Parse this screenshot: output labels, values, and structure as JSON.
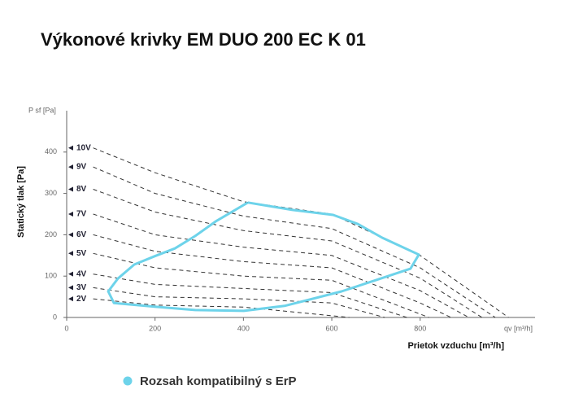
{
  "chart_data": {
    "type": "line",
    "title": "Výkonové krivky EM DUO 200 EC K 01",
    "y_axis_unit_label": "P sf [Pa]",
    "y_axis_label": "Statický tlak [Pa]",
    "x_axis_unit_label": "qv [m³/h]",
    "x_axis_label": "Prietok vzduchu [m³/h]",
    "xlim": [
      0,
      1060
    ],
    "ylim": [
      0,
      500
    ],
    "xticks": [
      0,
      200,
      400,
      600,
      800
    ],
    "yticks": [
      0,
      100,
      200,
      300,
      400
    ],
    "line_color": "#333333",
    "series": [
      {
        "name": "10V",
        "x": [
          60,
          200,
          400,
          600,
          800,
          1000
        ],
        "values": [
          410,
          350,
          280,
          250,
          150,
          0
        ]
      },
      {
        "name": "9V",
        "x": [
          60,
          200,
          400,
          600,
          800,
          970
        ],
        "values": [
          364,
          300,
          245,
          215,
          120,
          0
        ]
      },
      {
        "name": "8V",
        "x": [
          60,
          200,
          400,
          600,
          800,
          940
        ],
        "values": [
          310,
          255,
          210,
          185,
          95,
          0
        ]
      },
      {
        "name": "7V",
        "x": [
          60,
          200,
          400,
          600,
          800,
          910
        ],
        "values": [
          250,
          200,
          170,
          150,
          65,
          0
        ]
      },
      {
        "name": "6V",
        "x": [
          60,
          200,
          400,
          600,
          800,
          870
        ],
        "values": [
          200,
          160,
          135,
          120,
          35,
          0
        ]
      },
      {
        "name": "5V",
        "x": [
          60,
          200,
          400,
          600,
          820
        ],
        "values": [
          155,
          120,
          100,
          90,
          0
        ]
      },
      {
        "name": "4V",
        "x": [
          60,
          200,
          400,
          600,
          770
        ],
        "values": [
          105,
          80,
          70,
          60,
          0
        ]
      },
      {
        "name": "3V",
        "x": [
          60,
          200,
          400,
          600,
          720
        ],
        "values": [
          72,
          50,
          45,
          35,
          0
        ]
      },
      {
        "name": "2V",
        "x": [
          60,
          200,
          400,
          640
        ],
        "values": [
          45,
          30,
          25,
          0
        ]
      }
    ],
    "region": {
      "name": "Rozsah kompatibilný s ErP",
      "color": "#6dd3ea",
      "x": [
        410,
        511,
        603,
        659,
        714,
        797,
        778,
        696,
        622,
        493,
        401,
        291,
        199,
        107,
        94,
        116,
        153,
        199,
        245,
        291,
        337,
        410
      ],
      "values": [
        278,
        260,
        248,
        226,
        193,
        152,
        118,
        89,
        63,
        28,
        16,
        18,
        26,
        35,
        63,
        94,
        128,
        148,
        167,
        197,
        232,
        278
      ]
    }
  }
}
